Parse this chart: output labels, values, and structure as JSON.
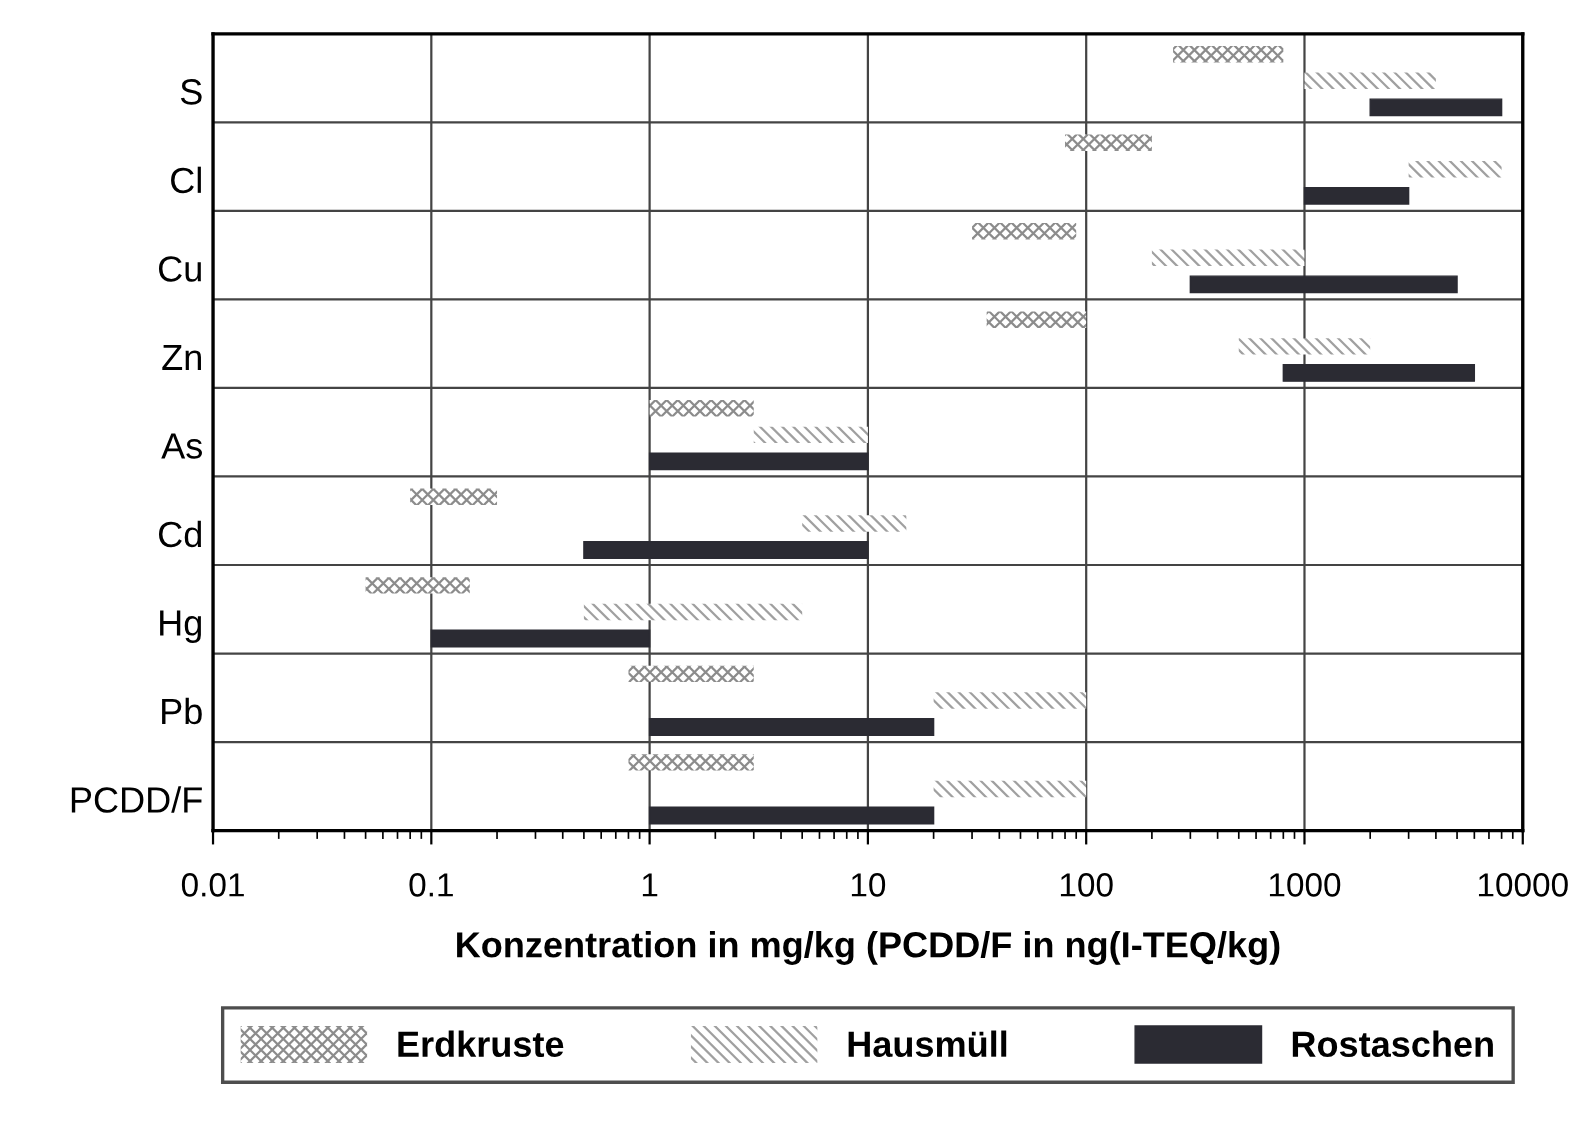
{
  "chart_data": {
    "type": "bar",
    "orientation": "horizontal",
    "log": "x",
    "xlabel": "Konzentration in mg/kg (PCDD/F in ng(I-TEQ/kg)",
    "categories": [
      "S",
      "Cl",
      "Cu",
      "Zn",
      "As",
      "Cd",
      "Hg",
      "Pb",
      "PCDD/F"
    ],
    "series": [
      {
        "name": "Erdkruste",
        "color": "#8c8c8c",
        "base": [
          250,
          80,
          30,
          35,
          1,
          0.08,
          0.05,
          0.8,
          0.8
        ],
        "values": [
          550,
          120,
          60,
          65,
          2,
          0.12,
          0.1,
          2.2,
          2.2
        ]
      },
      {
        "name": "Hausmüll",
        "color": "#a0a0a0",
        "base": [
          1000,
          3000,
          200,
          500,
          3,
          5,
          0.5,
          20,
          20
        ],
        "values": [
          3000,
          5000,
          800,
          1500,
          7,
          10,
          4.5,
          80,
          80
        ]
      },
      {
        "name": "Rostaschen",
        "color": "#2b2b33",
        "base": [
          2000,
          1000,
          300,
          800,
          1,
          0.5,
          0.1,
          1,
          1
        ],
        "values": [
          6000,
          2000,
          4700,
          5200,
          9,
          9.5,
          0.9,
          19,
          19
        ]
      }
    ],
    "xlim": [
      0.01,
      10000
    ],
    "xticks": [
      0.01,
      0.1,
      1,
      10,
      100,
      1000,
      10000
    ],
    "grid": true,
    "legend": "bottom"
  }
}
